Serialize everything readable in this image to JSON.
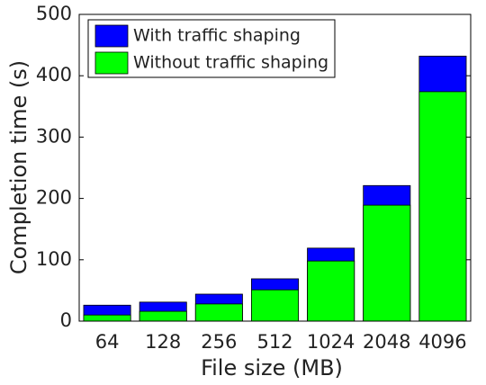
{
  "chart_data": {
    "type": "bar",
    "xlabel": "File size (MB)",
    "ylabel": "Completion time (s)",
    "categories": [
      "64",
      "128",
      "256",
      "512",
      "1024",
      "2048",
      "4096"
    ],
    "series": [
      {
        "name": "With traffic shaping",
        "color": "#0000ff",
        "values": [
          26,
          31,
          44,
          69,
          119,
          221,
          432
        ]
      },
      {
        "name": "Without traffic shaping",
        "color": "#00ff00",
        "values": [
          10,
          16,
          28,
          51,
          98,
          189,
          374
        ]
      }
    ],
    "ylim": [
      0,
      500
    ],
    "yticks": [
      0,
      100,
      200,
      300,
      400,
      500
    ],
    "legend": "upper left",
    "grid": false
  }
}
